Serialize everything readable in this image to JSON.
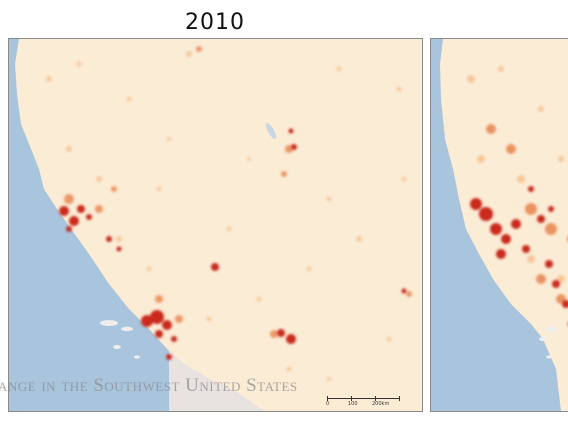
{
  "panels": [
    {
      "title": "2010"
    },
    {
      "title": ""
    }
  ],
  "watermark": "ange in the Southwest United States",
  "scalebar": {
    "labels": [
      "0",
      "100",
      "200km"
    ]
  },
  "colors": {
    "ocean": "#a9c4dd",
    "land": "#fbecd6",
    "urban_light": "#f6c48e",
    "urban_mid": "#e98a55",
    "urban_dense": "#c92a1e"
  }
}
